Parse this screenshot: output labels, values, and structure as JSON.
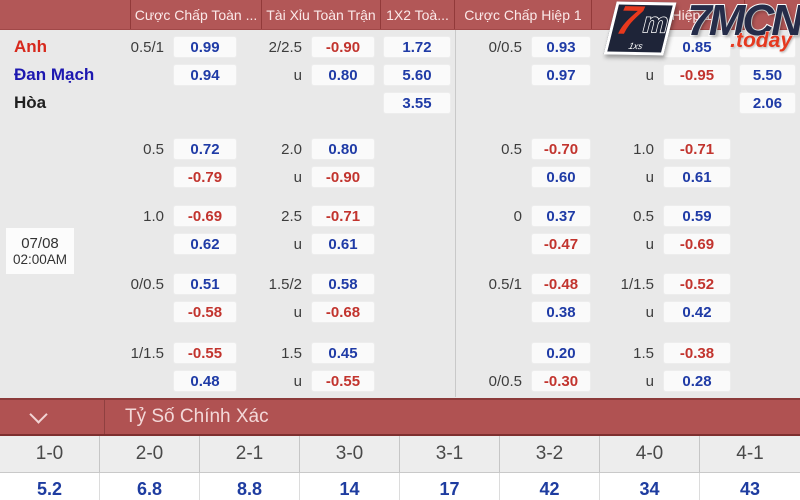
{
  "header": {
    "columns": [
      {
        "label": "",
        "width": 131
      },
      {
        "label": "Cược Chấp Toàn ...",
        "width": 131
      },
      {
        "label": "Tài Xỉu Toàn Trận",
        "width": 119
      },
      {
        "label": "1X2 Toà...",
        "width": 74
      },
      {
        "label": "Cược Chấp Hiệp 1",
        "width": 137
      },
      {
        "label": "Tài Xỉu Hiệp 1",
        "width": 153
      },
      {
        "label": "",
        "width": 55
      }
    ]
  },
  "logo": {
    "brand": "7MCN",
    "tld": ".today",
    "badge_seven": "7",
    "badge_m": "m",
    "badge_small": "1xs"
  },
  "match": {
    "date": "07/08",
    "time": "02:00AM",
    "teams": [
      {
        "name": "Anh",
        "color": "#d7281c"
      },
      {
        "name": "Đan Mạch",
        "color": "#1d18b0"
      },
      {
        "name": "Hòa",
        "color": "#1f1f1f"
      }
    ]
  },
  "odds_groups": [
    {
      "rows": [
        {
          "team": 0,
          "fm_hcp": "0.5/1",
          "fm_odds": {
            "v": "0.99",
            "c": "b"
          },
          "tx_hcp": "2/2.5",
          "tx_odds": {
            "v": "-0.90",
            "c": "r"
          },
          "x12_odds": {
            "v": "1.72",
            "c": "b"
          },
          "h1_hcp": "0/0.5",
          "h1_odds": {
            "v": "0.93",
            "c": "b"
          },
          "txh1_hcp": "",
          "txh1_odds": {
            "v": "0.85",
            "c": "b"
          },
          "x12h1_odds": {
            "v": "",
            "c": "b"
          }
        },
        {
          "team": 1,
          "fm_hcp": "",
          "fm_odds": {
            "v": "0.94",
            "c": "b"
          },
          "tx_hcp": "u",
          "tx_odds": {
            "v": "0.80",
            "c": "b"
          },
          "x12_odds": {
            "v": "5.60",
            "c": "b"
          },
          "h1_hcp": "",
          "h1_odds": {
            "v": "0.97",
            "c": "b"
          },
          "txh1_hcp": "u",
          "txh1_odds": {
            "v": "-0.95",
            "c": "r"
          },
          "x12h1_odds": {
            "v": "5.50",
            "c": "b"
          }
        },
        {
          "team": 2,
          "x12_odds": {
            "v": "3.55",
            "c": "b"
          },
          "x12h1_odds": {
            "v": "2.06",
            "c": "b"
          }
        }
      ]
    },
    {
      "rows": [
        {
          "fm_hcp": "0.5",
          "fm_odds": {
            "v": "0.72",
            "c": "b"
          },
          "tx_hcp": "2.0",
          "tx_odds": {
            "v": "0.80",
            "c": "b"
          },
          "h1_hcp": "0.5",
          "h1_odds": {
            "v": "-0.70",
            "c": "r"
          },
          "txh1_hcp": "1.0",
          "txh1_odds": {
            "v": "-0.71",
            "c": "r"
          }
        },
        {
          "fm_odds": {
            "v": "-0.79",
            "c": "r"
          },
          "tx_hcp": "u",
          "tx_odds": {
            "v": "-0.90",
            "c": "r"
          },
          "h1_odds": {
            "v": "0.60",
            "c": "b"
          },
          "txh1_hcp": "u",
          "txh1_odds": {
            "v": "0.61",
            "c": "b"
          }
        }
      ]
    },
    {
      "rows": [
        {
          "fm_hcp": "1.0",
          "fm_odds": {
            "v": "-0.69",
            "c": "r"
          },
          "tx_hcp": "2.5",
          "tx_odds": {
            "v": "-0.71",
            "c": "r"
          },
          "h1_hcp": "0",
          "h1_odds": {
            "v": "0.37",
            "c": "b"
          },
          "txh1_hcp": "0.5",
          "txh1_odds": {
            "v": "0.59",
            "c": "b"
          }
        },
        {
          "fm_odds": {
            "v": "0.62",
            "c": "b"
          },
          "tx_hcp": "u",
          "tx_odds": {
            "v": "0.61",
            "c": "b"
          },
          "h1_odds": {
            "v": "-0.47",
            "c": "r"
          },
          "txh1_hcp": "u",
          "txh1_odds": {
            "v": "-0.69",
            "c": "r"
          }
        }
      ]
    },
    {
      "rows": [
        {
          "fm_hcp": "0/0.5",
          "fm_odds": {
            "v": "0.51",
            "c": "b"
          },
          "tx_hcp": "1.5/2",
          "tx_odds": {
            "v": "0.58",
            "c": "b"
          },
          "h1_hcp": "0.5/1",
          "h1_odds": {
            "v": "-0.48",
            "c": "r"
          },
          "txh1_hcp": "1/1.5",
          "txh1_odds": {
            "v": "-0.52",
            "c": "r"
          }
        },
        {
          "fm_odds": {
            "v": "-0.58",
            "c": "r"
          },
          "tx_hcp": "u",
          "tx_odds": {
            "v": "-0.68",
            "c": "r"
          },
          "h1_odds": {
            "v": "0.38",
            "c": "b"
          },
          "txh1_hcp": "u",
          "txh1_odds": {
            "v": "0.42",
            "c": "b"
          }
        }
      ]
    },
    {
      "rows": [
        {
          "fm_hcp": "1/1.5",
          "fm_odds": {
            "v": "-0.55",
            "c": "r"
          },
          "tx_hcp": "1.5",
          "tx_odds": {
            "v": "0.45",
            "c": "b"
          },
          "h1_odds": {
            "v": "0.20",
            "c": "b"
          },
          "txh1_hcp": "1.5",
          "txh1_odds": {
            "v": "-0.38",
            "c": "r"
          }
        },
        {
          "fm_odds": {
            "v": "0.48",
            "c": "b"
          },
          "tx_hcp": "u",
          "tx_odds": {
            "v": "-0.55",
            "c": "r"
          },
          "h1_hcp": "0/0.5",
          "h1_odds": {
            "v": "-0.30",
            "c": "r"
          },
          "txh1_hcp": "u",
          "txh1_odds": {
            "v": "0.28",
            "c": "b"
          }
        }
      ]
    }
  ],
  "correct_score": {
    "title": "Tỷ Số Chính Xác",
    "columns": [
      {
        "score": "1-0",
        "odds": "5.2"
      },
      {
        "score": "2-0",
        "odds": "6.8"
      },
      {
        "score": "2-1",
        "odds": "8.8"
      },
      {
        "score": "3-0",
        "odds": "14"
      },
      {
        "score": "3-1",
        "odds": "17"
      },
      {
        "score": "3-2",
        "odds": "42"
      },
      {
        "score": "4-0",
        "odds": "34"
      },
      {
        "score": "4-1",
        "odds": "43"
      }
    ]
  },
  "colors": {
    "bar_red": "#b25757",
    "odds_blue": "#1f3ba6",
    "odds_red": "#c2342e",
    "background": "#e9e9e9"
  }
}
